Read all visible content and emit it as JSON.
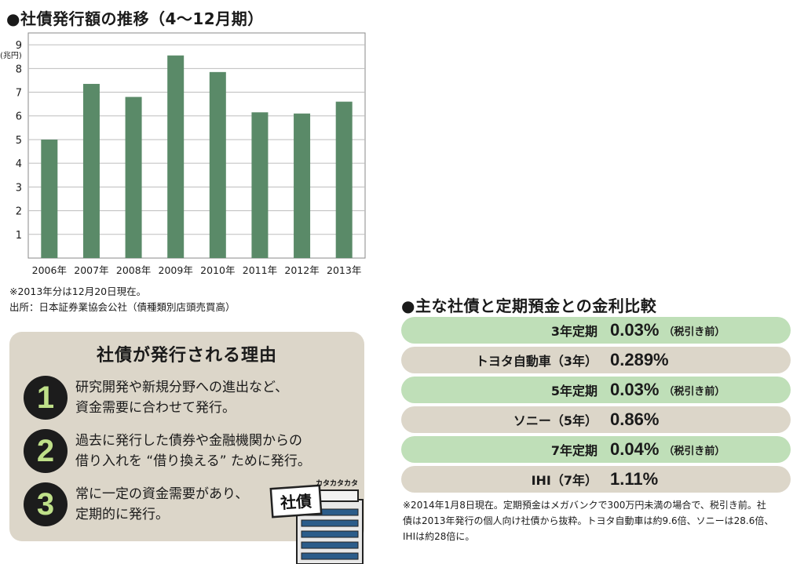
{
  "chart": {
    "title": "●社債発行額の推移（4～12月期）",
    "unit": "(兆円)",
    "note1": "※2013年分は12月20日現在。",
    "note2": "出所：日本証券業協会公社（債種類別店頭売買高）"
  },
  "chart_data": {
    "type": "bar",
    "title": "社債発行額の推移（4～12月期）",
    "categories": [
      "2006年",
      "2007年",
      "2008年",
      "2009年",
      "2010年",
      "2011年",
      "2012年",
      "2013年"
    ],
    "values": [
      5.0,
      7.35,
      6.8,
      8.55,
      7.85,
      6.15,
      6.1,
      6.6
    ],
    "ylabel": "(兆円)",
    "yticks": [
      1,
      2,
      3,
      4,
      5,
      6,
      7,
      8,
      9
    ],
    "ylim": [
      0,
      9.5
    ],
    "grid": true,
    "bar_color": "#5a8a68"
  },
  "reasons": {
    "title": "社債が発行される理由",
    "items": [
      {
        "num": "1",
        "line1": "研究開発や新規分野への進出など、",
        "line2": "資金需要に合わせて発行。"
      },
      {
        "num": "2",
        "line1": "過去に発行した債券や金融機関からの",
        "line2": "借り入れを “借り換える” ために発行。"
      },
      {
        "num": "3",
        "line1": "常に一定の資金需要があり、",
        "line2": "定期的に発行。"
      }
    ],
    "illustration": {
      "sign": "社債",
      "sound": "カタカタカタ"
    }
  },
  "rates": {
    "title": "●主な社債と定期預金との金利比較",
    "rows": [
      {
        "label": "3年定期",
        "value": "0.03%",
        "note": "（税引き前）",
        "color": "green"
      },
      {
        "label": "トヨタ自動車（3年）",
        "value": "0.289%",
        "note": "",
        "color": "beige"
      },
      {
        "label": "5年定期",
        "value": "0.03%",
        "note": "（税引き前）",
        "color": "green"
      },
      {
        "label": "ソニー（5年）",
        "value": "0.86%",
        "note": "",
        "color": "beige"
      },
      {
        "label": "7年定期",
        "value": "0.04%",
        "note": "（税引き前）",
        "color": "green"
      },
      {
        "label": "IHI（7年）",
        "value": "1.11%",
        "note": "",
        "color": "beige"
      }
    ],
    "footnote": {
      "line1": "※2014年1月8日現在。定期預金はメガバンクで300万円未満の場合で、税引き前。社",
      "line2": "債は2013年発行の個人向け社債から抜粋。トヨタ自動車は約9.6倍、ソニーは28.6倍、",
      "line3": "IHIは約28倍に。"
    }
  }
}
